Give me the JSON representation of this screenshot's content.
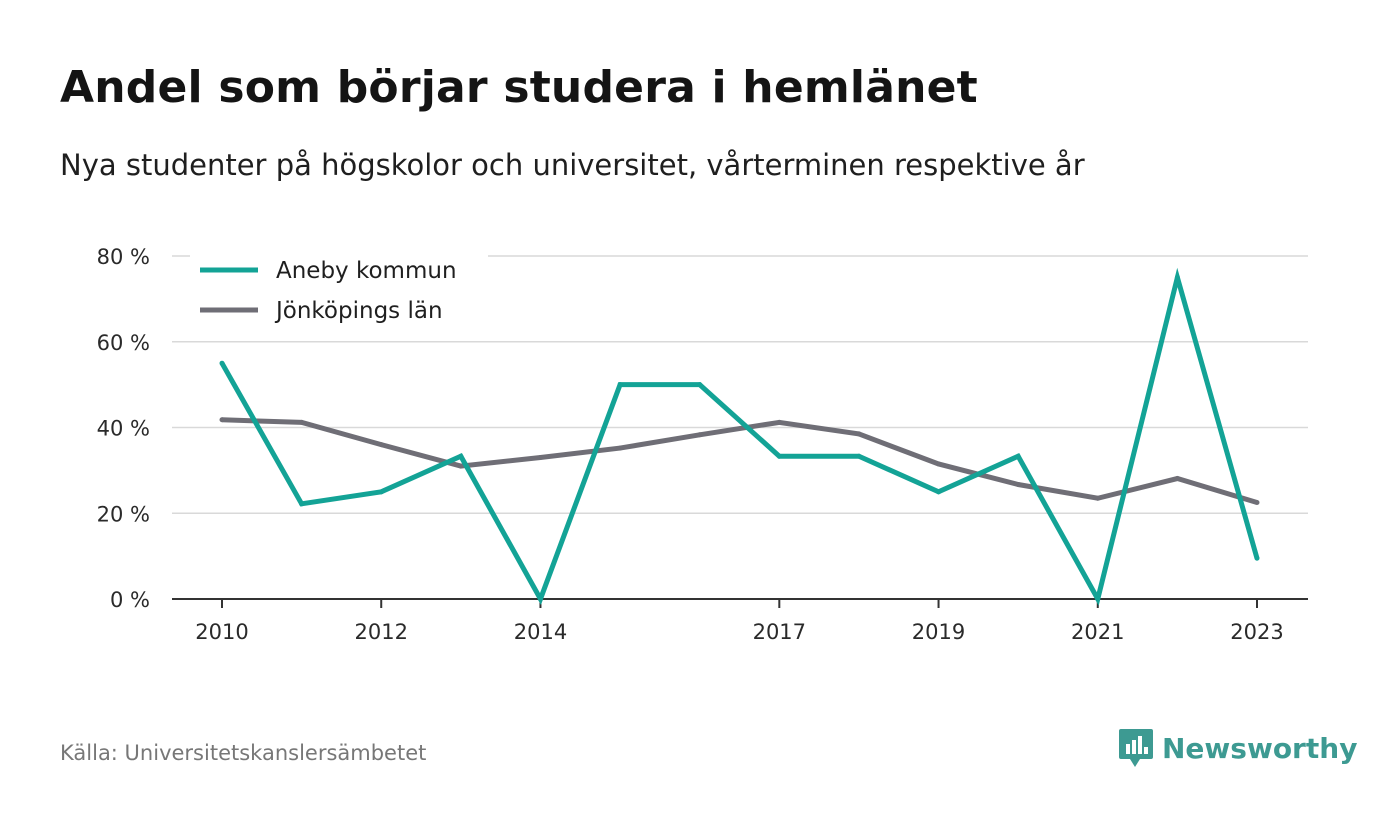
{
  "header": {
    "title": "Andel som börjar studera i hemlänet",
    "subtitle": "Nya studenter på högskolor och universitet, vårterminen respektive år"
  },
  "footer": {
    "source": "Källa: Universitetskanslersämbetet",
    "brand": "Newsworthy"
  },
  "colors": {
    "aneby": "#13a396",
    "lan": "#6f6e76",
    "grid": "#d9d9d9",
    "axis": "#333333",
    "brand": "#3d9a92"
  },
  "chart_data": {
    "type": "line",
    "x": [
      2010,
      2011,
      2012,
      2013,
      2014,
      2015,
      2016,
      2017,
      2018,
      2019,
      2020,
      2021,
      2022,
      2023
    ],
    "x_tick_labels": [
      "2010",
      "2012",
      "2014",
      "2017",
      "2019",
      "2021",
      "2023"
    ],
    "y_tick_labels": [
      "0 %",
      "20 %",
      "40 %",
      "60 %",
      "80 %"
    ],
    "y_ticks": [
      0,
      20,
      40,
      60,
      80
    ],
    "ylim": [
      0,
      80
    ],
    "grid": true,
    "legend_position": "top-left",
    "series": [
      {
        "name": "Aneby kommun",
        "color": "#13a396",
        "values": [
          55,
          22.2,
          25,
          33.3,
          0,
          50,
          50,
          33.3,
          33.3,
          25,
          33.3,
          0,
          75,
          9.5
        ]
      },
      {
        "name": "Jönköpings län",
        "color": "#6f6e76",
        "values": [
          41.8,
          41.2,
          36,
          31,
          33,
          35.2,
          38.3,
          41.2,
          38.5,
          31.5,
          26.7,
          23.5,
          28.1,
          22.5
        ]
      }
    ]
  }
}
